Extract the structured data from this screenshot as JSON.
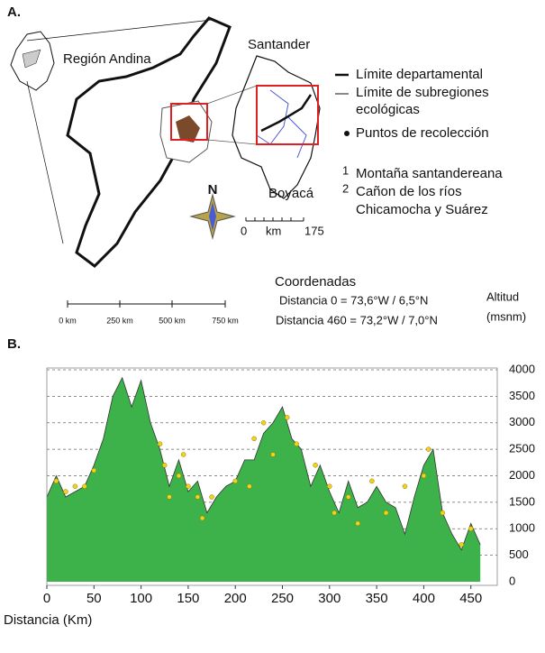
{
  "panel_a": {
    "label": "A.",
    "region": "Región Andina",
    "department": "Santander",
    "neighbor": "Boyacá",
    "north": "N",
    "legend": {
      "boundary": "Límite departamental",
      "subregions": [
        "Límite de subregiones",
        "ecológicas"
      ],
      "points": "Puntos de recolección",
      "sub1_num": "1",
      "sub1": "Montaña santandereana",
      "sub2_num": "2",
      "sub2": [
        "Cañon de los ríos",
        "Chicamocha y Suárez"
      ]
    },
    "small_scale": [
      "0",
      "km",
      "175"
    ],
    "scale": [
      "0 km",
      "250 km",
      "500 km",
      "750 km"
    ],
    "coords_title": "Coordenadas",
    "coords": [
      "Distancia 0 = 73,6°W / 6,5°N",
      "Distancia 460 = 73,2°W / 7,0°N"
    ],
    "y_label": [
      "Altitud",
      "(msnm)"
    ]
  },
  "chart_data": {
    "type": "area",
    "panel_label": "B.",
    "x_label": "Distancia (Km)",
    "color": "#3db24a",
    "x": [
      0,
      10,
      20,
      30,
      40,
      50,
      60,
      70,
      80,
      90,
      100,
      110,
      120,
      130,
      140,
      150,
      160,
      170,
      180,
      190,
      200,
      210,
      220,
      230,
      240,
      250,
      260,
      270,
      280,
      290,
      300,
      310,
      320,
      330,
      340,
      350,
      360,
      370,
      380,
      390,
      400,
      410,
      420,
      430,
      440,
      450,
      460
    ],
    "values": [
      1600,
      2000,
      1600,
      1700,
      1800,
      2200,
      2700,
      3500,
      3850,
      3300,
      3800,
      3000,
      2500,
      1800,
      2300,
      1700,
      1900,
      1300,
      1600,
      1800,
      1900,
      2300,
      2300,
      2800,
      3000,
      3300,
      2700,
      2500,
      1800,
      2200,
      1700,
      1300,
      1900,
      1400,
      1500,
      1800,
      1500,
      1400,
      900,
      1600,
      2200,
      2500,
      1300,
      900,
      600,
      1100,
      700
    ],
    "collection_points": {
      "color": "#f2d21b",
      "x": [
        10,
        20,
        30,
        40,
        50,
        120,
        125,
        130,
        140,
        145,
        150,
        160,
        165,
        175,
        200,
        215,
        220,
        230,
        240,
        255,
        265,
        285,
        300,
        305,
        320,
        330,
        345,
        360,
        380,
        400,
        405,
        420,
        440,
        450
      ],
      "values": [
        1900,
        1700,
        1800,
        1800,
        2100,
        2600,
        2200,
        1600,
        2000,
        2400,
        1800,
        1600,
        1200,
        1600,
        1900,
        1800,
        2700,
        3000,
        2400,
        3100,
        2600,
        2200,
        1800,
        1300,
        1600,
        1100,
        1900,
        1300,
        1800,
        2000,
        2500,
        1300,
        700,
        1000
      ]
    },
    "xlim": [
      0,
      478
    ],
    "ylim": [
      0,
      4000
    ],
    "xticks": [
      0,
      50,
      100,
      150,
      200,
      250,
      300,
      350,
      400,
      450
    ],
    "yticks": [
      0,
      500,
      1000,
      1500,
      2000,
      2500,
      3000,
      3500,
      4000
    ],
    "grid": true
  }
}
